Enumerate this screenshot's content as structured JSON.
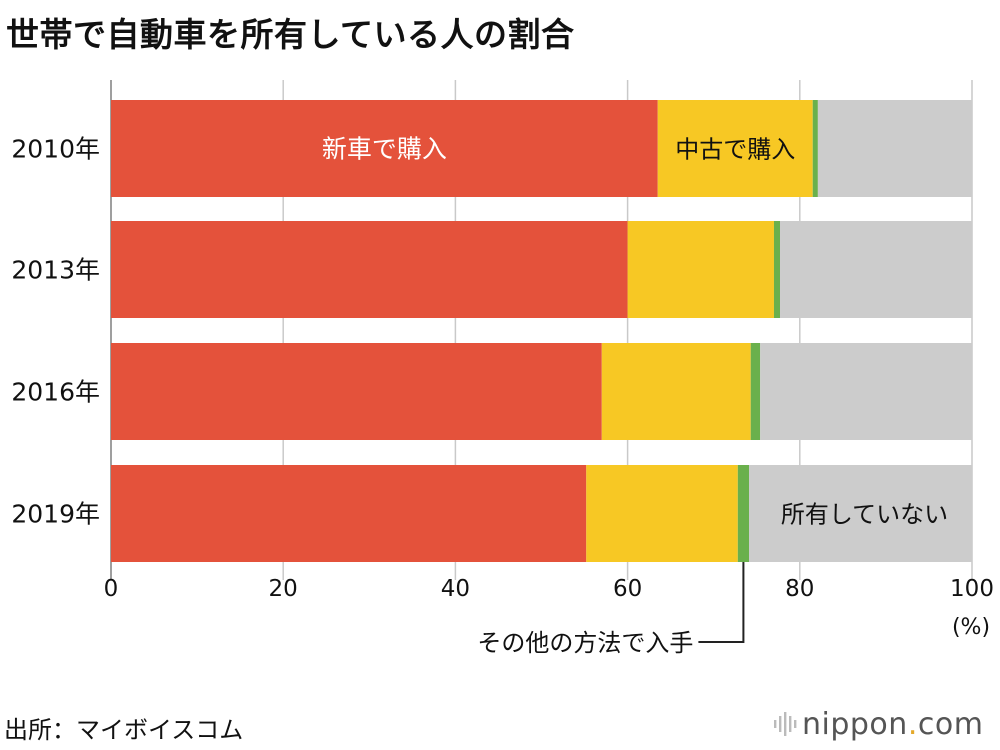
{
  "title": "世帯で自動車を所有している人の割合",
  "source": "出所：マイボイスコム",
  "logo": {
    "name": "nippon",
    "dot": ".",
    "suffix": "com",
    "icon": "sound-wave-icon"
  },
  "colors": {
    "new_car": "#e4523b",
    "used_car": "#f7c824",
    "other": "#6ab04c",
    "not_owned": "#cccccc",
    "grid": "#c9c9c9"
  },
  "chart_data": {
    "type": "bar",
    "orientation": "horizontal",
    "stacked": true,
    "title": "世帯で自動車を所有している人の割合",
    "categories": [
      "2010年",
      "2013年",
      "2016年",
      "2019年"
    ],
    "series": [
      {
        "name": "新車で購入",
        "key": "new_car",
        "values": [
          63.5,
          60.0,
          57.0,
          55.2
        ]
      },
      {
        "name": "中古で購入",
        "key": "used_car",
        "values": [
          18.0,
          17.0,
          17.3,
          17.6
        ]
      },
      {
        "name": "その他の方法で入手",
        "key": "other",
        "values": [
          0.6,
          0.7,
          1.1,
          1.3
        ]
      },
      {
        "name": "所有していない",
        "key": "not_owned",
        "values": [
          17.9,
          22.3,
          24.6,
          25.9
        ]
      }
    ],
    "xlim": [
      0,
      100
    ],
    "xticks": [
      0,
      20,
      40,
      60,
      80,
      100
    ],
    "xlabel": "(%)",
    "grid": true,
    "annotations": {
      "new_car": "新車で購入",
      "used_car": "中古で購入",
      "not_owned": "所有していない",
      "other": "その他の方法で入手"
    }
  }
}
